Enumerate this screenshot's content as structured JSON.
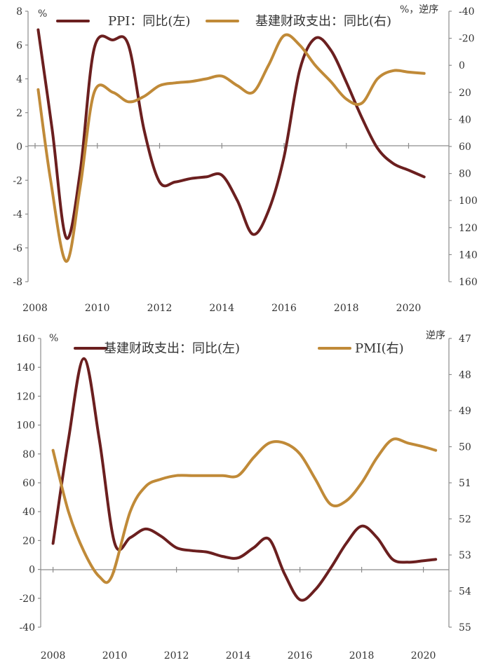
{
  "colors": {
    "dark_red": "#6b1f1f",
    "gold": "#c08a38",
    "axis": "#8c8c8c"
  },
  "chart_data": [
    {
      "type": "line",
      "units": {
        "left": "%",
        "right": "%，逆序"
      },
      "x_ticks": [
        "2008",
        "2010",
        "2012",
        "2014",
        "2016",
        "2018",
        "2020"
      ],
      "xlim": [
        2008,
        2020.8
      ],
      "left_axis": {
        "ticks": [
          "8",
          "6",
          "4",
          "2",
          "0",
          "-2",
          "-4",
          "-6",
          "-8"
        ],
        "ylim": [
          -8,
          8
        ]
      },
      "right_axis": {
        "ticks": [
          "-40",
          "-20",
          "0",
          "20",
          "40",
          "60",
          "80",
          "100",
          "120",
          "140",
          "160"
        ],
        "ylim": [
          -40,
          160
        ],
        "reversed": true
      },
      "series": [
        {
          "name": "PPI：同比(左)",
          "axis": "left",
          "color": "#6b1f1f",
          "points": [
            [
              2008.1,
              6.9
            ],
            [
              2008.55,
              1.0
            ],
            [
              2009.0,
              -5.4
            ],
            [
              2009.45,
              -1.5
            ],
            [
              2009.9,
              5.8
            ],
            [
              2010.5,
              6.3
            ],
            [
              2011.0,
              6.0
            ],
            [
              2011.5,
              1.0
            ],
            [
              2012.0,
              -2.1
            ],
            [
              2012.5,
              -2.1
            ],
            [
              2013.0,
              -1.9
            ],
            [
              2013.5,
              -1.8
            ],
            [
              2014.0,
              -1.7
            ],
            [
              2014.5,
              -3.2
            ],
            [
              2015.0,
              -5.2
            ],
            [
              2015.5,
              -3.8
            ],
            [
              2016.0,
              -0.6
            ],
            [
              2016.5,
              4.5
            ],
            [
              2017.0,
              6.4
            ],
            [
              2017.5,
              5.7
            ],
            [
              2018.0,
              3.8
            ],
            [
              2018.5,
              1.7
            ],
            [
              2019.0,
              -0.1
            ],
            [
              2019.5,
              -1.0
            ],
            [
              2020.0,
              -1.4
            ],
            [
              2020.5,
              -1.8
            ]
          ]
        },
        {
          "name": "基建财政支出：同比(右)",
          "axis": "right",
          "color": "#c08a38",
          "points": [
            [
              2008.1,
              18
            ],
            [
              2008.5,
              85
            ],
            [
              2009.0,
              145
            ],
            [
              2009.45,
              90
            ],
            [
              2009.9,
              20
            ],
            [
              2010.5,
              20
            ],
            [
              2011.0,
              27
            ],
            [
              2011.5,
              23
            ],
            [
              2012.0,
              15
            ],
            [
              2012.5,
              13
            ],
            [
              2013.0,
              12
            ],
            [
              2013.5,
              10
            ],
            [
              2014.0,
              8
            ],
            [
              2014.5,
              15
            ],
            [
              2015.0,
              20
            ],
            [
              2015.5,
              0
            ],
            [
              2016.0,
              -22
            ],
            [
              2016.5,
              -15
            ],
            [
              2017.0,
              0
            ],
            [
              2017.5,
              12
            ],
            [
              2018.0,
              25
            ],
            [
              2018.5,
              28
            ],
            [
              2019.0,
              10
            ],
            [
              2019.5,
              4
            ],
            [
              2020.0,
              5
            ],
            [
              2020.5,
              6
            ]
          ]
        }
      ]
    },
    {
      "type": "line",
      "units": {
        "left": "%",
        "right": "逆序"
      },
      "x_ticks": [
        "2008",
        "2010",
        "2012",
        "2014",
        "2016",
        "2018",
        "2020"
      ],
      "xlim": [
        2007.6,
        2020.6
      ],
      "left_axis": {
        "ticks": [
          "160",
          "140",
          "120",
          "100",
          "80",
          "60",
          "40",
          "20",
          "0",
          "-20",
          "-40"
        ],
        "ylim": [
          -40,
          160
        ]
      },
      "right_axis": {
        "ticks": [
          "47",
          "48",
          "49",
          "50",
          "51",
          "52",
          "53",
          "54",
          "55"
        ],
        "ylim": [
          47,
          55
        ],
        "reversed": true
      },
      "series": [
        {
          "name": "基建财政支出：同比(左)",
          "axis": "left",
          "color": "#6b1f1f",
          "points": [
            [
              2008.0,
              18
            ],
            [
              2008.5,
              90
            ],
            [
              2009.0,
              146
            ],
            [
              2009.5,
              90
            ],
            [
              2010.0,
              18
            ],
            [
              2010.5,
              22
            ],
            [
              2011.0,
              28
            ],
            [
              2011.5,
              23
            ],
            [
              2012.0,
              15
            ],
            [
              2012.5,
              13
            ],
            [
              2013.0,
              12
            ],
            [
              2013.5,
              9
            ],
            [
              2014.0,
              8
            ],
            [
              2014.5,
              15
            ],
            [
              2015.0,
              21
            ],
            [
              2015.5,
              -3
            ],
            [
              2016.0,
              -21
            ],
            [
              2016.5,
              -14
            ],
            [
              2017.0,
              1
            ],
            [
              2017.5,
              18
            ],
            [
              2018.0,
              30
            ],
            [
              2018.5,
              22
            ],
            [
              2019.0,
              7
            ],
            [
              2019.5,
              5
            ],
            [
              2020.0,
              6
            ],
            [
              2020.4,
              7
            ]
          ]
        },
        {
          "name": "PMI(右)",
          "axis": "right",
          "color": "#c08a38",
          "points": [
            [
              2008.0,
              50.1
            ],
            [
              2008.5,
              51.8
            ],
            [
              2009.0,
              52.9
            ],
            [
              2009.5,
              53.6
            ],
            [
              2009.9,
              53.6
            ],
            [
              2010.5,
              51.8
            ],
            [
              2011.0,
              51.1
            ],
            [
              2011.5,
              50.9
            ],
            [
              2012.0,
              50.8
            ],
            [
              2012.5,
              50.8
            ],
            [
              2013.0,
              50.8
            ],
            [
              2013.5,
              50.8
            ],
            [
              2014.0,
              50.8
            ],
            [
              2014.5,
              50.3
            ],
            [
              2015.0,
              49.9
            ],
            [
              2015.5,
              49.9
            ],
            [
              2016.0,
              50.2
            ],
            [
              2016.5,
              50.9
            ],
            [
              2017.0,
              51.6
            ],
            [
              2017.5,
              51.5
            ],
            [
              2018.0,
              51.0
            ],
            [
              2018.5,
              50.3
            ],
            [
              2019.0,
              49.8
            ],
            [
              2019.5,
              49.9
            ],
            [
              2020.0,
              50.0
            ],
            [
              2020.4,
              50.1
            ]
          ]
        }
      ]
    }
  ]
}
